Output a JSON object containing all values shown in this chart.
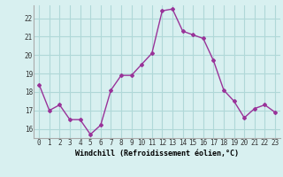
{
  "x": [
    0,
    1,
    2,
    3,
    4,
    5,
    6,
    7,
    8,
    9,
    10,
    11,
    12,
    13,
    14,
    15,
    16,
    17,
    18,
    19,
    20,
    21,
    22,
    23
  ],
  "y": [
    18.4,
    17.0,
    17.3,
    16.5,
    16.5,
    15.7,
    16.2,
    18.1,
    18.9,
    18.9,
    19.5,
    20.1,
    22.4,
    22.5,
    21.3,
    21.1,
    20.9,
    19.7,
    18.1,
    17.5,
    16.6,
    17.1,
    17.3,
    16.9
  ],
  "line_color": "#993399",
  "marker": "D",
  "marker_size": 2,
  "bg_color": "#d8f0f0",
  "grid_color": "#b0d8d8",
  "xlabel": "Windchill (Refroidissement éolien,°C)",
  "xlabel_fontsize": 6,
  "ylim": [
    15.5,
    22.7
  ],
  "yticks": [
    16,
    17,
    18,
    19,
    20,
    21,
    22
  ],
  "xticks": [
    0,
    1,
    2,
    3,
    4,
    5,
    6,
    7,
    8,
    9,
    10,
    11,
    12,
    13,
    14,
    15,
    16,
    17,
    18,
    19,
    20,
    21,
    22,
    23
  ],
  "tick_fontsize": 5.5,
  "line_width": 1.0
}
